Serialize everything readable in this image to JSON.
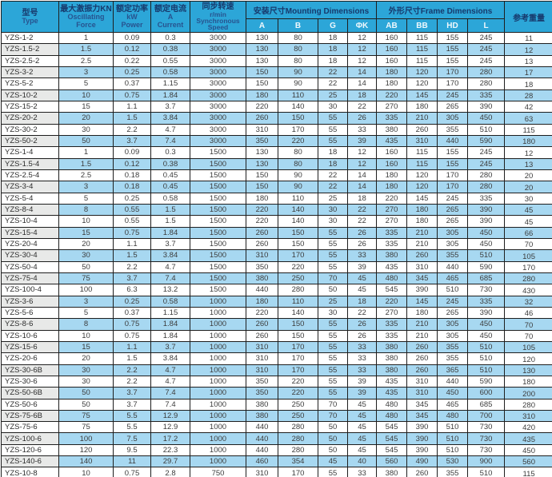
{
  "table": {
    "columns": {
      "type": {
        "lines": [
          "型号",
          "Type"
        ]
      },
      "force": {
        "lines": [
          "最大激振力KN",
          "Oscillating",
          "Force"
        ]
      },
      "power": {
        "lines": [
          "额定功率",
          "kW",
          "Power"
        ]
      },
      "current": {
        "lines": [
          "额定电流",
          "A",
          "Current"
        ]
      },
      "speed": {
        "lines": [
          "同步转速",
          "r/min",
          "Synchronous",
          "Speed"
        ]
      },
      "mounting": {
        "label": "安装尺寸Mounting Dimensions",
        "subs": [
          "A",
          "B",
          "G",
          "ΦK"
        ]
      },
      "frame": {
        "label": "外形尺寸Frame Dimensions",
        "subs": [
          "AB",
          "BB",
          "HD",
          "L"
        ]
      },
      "weight": {
        "label": "参考重量"
      }
    },
    "rows": [
      [
        "YZS-1-2",
        "1",
        "0.09",
        "0.3",
        "3000",
        "130",
        "80",
        "18",
        "12",
        "160",
        "115",
        "155",
        "245",
        "11"
      ],
      [
        "YZS-1.5-2",
        "1.5",
        "0.12",
        "0.38",
        "3000",
        "130",
        "80",
        "18",
        "12",
        "160",
        "115",
        "155",
        "245",
        "12"
      ],
      [
        "YZS-2.5-2",
        "2.5",
        "0.22",
        "0.55",
        "3000",
        "130",
        "80",
        "18",
        "12",
        "160",
        "115",
        "155",
        "245",
        "13"
      ],
      [
        "YZS-3-2",
        "3",
        "0.25",
        "0.58",
        "3000",
        "150",
        "90",
        "22",
        "14",
        "180",
        "120",
        "170",
        "280",
        "17"
      ],
      [
        "YZS-5-2",
        "5",
        "0.37",
        "1.15",
        "3000",
        "150",
        "90",
        "22",
        "14",
        "180",
        "120",
        "170",
        "280",
        "18"
      ],
      [
        "YZS-10-2",
        "10",
        "0.75",
        "1.84",
        "3000",
        "180",
        "110",
        "25",
        "18",
        "220",
        "145",
        "245",
        "335",
        "28"
      ],
      [
        "YZS-15-2",
        "15",
        "1.1",
        "3.7",
        "3000",
        "220",
        "140",
        "30",
        "22",
        "270",
        "180",
        "265",
        "390",
        "42"
      ],
      [
        "YZS-20-2",
        "20",
        "1.5",
        "3.84",
        "3000",
        "260",
        "150",
        "55",
        "26",
        "335",
        "210",
        "305",
        "450",
        "63"
      ],
      [
        "YZS-30-2",
        "30",
        "2.2",
        "4.7",
        "3000",
        "310",
        "170",
        "55",
        "33",
        "380",
        "260",
        "355",
        "510",
        "115"
      ],
      [
        "YZS-50-2",
        "50",
        "3.7",
        "7.4",
        "3000",
        "350",
        "220",
        "55",
        "39",
        "435",
        "310",
        "440",
        "590",
        "180"
      ],
      [
        "YZS-1-4",
        "1",
        "0.09",
        "0.3",
        "1500",
        "130",
        "80",
        "18",
        "12",
        "160",
        "115",
        "155",
        "245",
        "12"
      ],
      [
        "YZS-1.5-4",
        "1.5",
        "0.12",
        "0.38",
        "1500",
        "130",
        "80",
        "18",
        "12",
        "160",
        "115",
        "155",
        "245",
        "13"
      ],
      [
        "YZS-2.5-4",
        "2.5",
        "0.18",
        "0.45",
        "1500",
        "150",
        "90",
        "22",
        "14",
        "180",
        "120",
        "170",
        "280",
        "20"
      ],
      [
        "YZS-3-4",
        "3",
        "0.18",
        "0.45",
        "1500",
        "150",
        "90",
        "22",
        "14",
        "180",
        "120",
        "170",
        "280",
        "20"
      ],
      [
        "YZS-5-4",
        "5",
        "0.25",
        "0.58",
        "1500",
        "180",
        "110",
        "25",
        "18",
        "220",
        "145",
        "245",
        "335",
        "30"
      ],
      [
        "YZS-8-4",
        "8",
        "0.55",
        "1.5",
        "1500",
        "220",
        "140",
        "30",
        "22",
        "270",
        "180",
        "265",
        "390",
        "45"
      ],
      [
        "YZS-10-4",
        "10",
        "0.55",
        "1.5",
        "1500",
        "220",
        "140",
        "30",
        "22",
        "270",
        "180",
        "265",
        "390",
        "45"
      ],
      [
        "YZS-15-4",
        "15",
        "0.75",
        "1.84",
        "1500",
        "260",
        "150",
        "55",
        "26",
        "335",
        "210",
        "305",
        "450",
        "66"
      ],
      [
        "YZS-20-4",
        "20",
        "1.1",
        "3.7",
        "1500",
        "260",
        "150",
        "55",
        "26",
        "335",
        "210",
        "305",
        "450",
        "70"
      ],
      [
        "YZS-30-4",
        "30",
        "1.5",
        "3.84",
        "1500",
        "310",
        "170",
        "55",
        "33",
        "380",
        "260",
        "355",
        "510",
        "105"
      ],
      [
        "YZS-50-4",
        "50",
        "2.2",
        "4.7",
        "1500",
        "350",
        "220",
        "55",
        "39",
        "435",
        "310",
        "440",
        "590",
        "170"
      ],
      [
        "YZS-75-4",
        "75",
        "3.7",
        "7.4",
        "1500",
        "380",
        "250",
        "70",
        "45",
        "480",
        "345",
        "465",
        "685",
        "280"
      ],
      [
        "YZS-100-4",
        "100",
        "6.3",
        "13.2",
        "1500",
        "440",
        "280",
        "50",
        "45",
        "545",
        "390",
        "510",
        "730",
        "430"
      ],
      [
        "YZS-3-6",
        "3",
        "0.25",
        "0.58",
        "1000",
        "180",
        "110",
        "25",
        "18",
        "220",
        "145",
        "245",
        "335",
        "32"
      ],
      [
        "YZS-5-6",
        "5",
        "0.37",
        "1.15",
        "1000",
        "220",
        "140",
        "30",
        "22",
        "270",
        "180",
        "265",
        "390",
        "46"
      ],
      [
        "YZS-8-6",
        "8",
        "0.75",
        "1.84",
        "1000",
        "260",
        "150",
        "55",
        "26",
        "335",
        "210",
        "305",
        "450",
        "70"
      ],
      [
        "YZS-10-6",
        "10",
        "0.75",
        "1.84",
        "1000",
        "260",
        "150",
        "55",
        "26",
        "335",
        "210",
        "305",
        "450",
        "70"
      ],
      [
        "YZS-15-6",
        "15",
        "1.1",
        "3.7",
        "1000",
        "310",
        "170",
        "55",
        "33",
        "380",
        "260",
        "355",
        "510",
        "105"
      ],
      [
        "YZS-20-6",
        "20",
        "1.5",
        "3.84",
        "1000",
        "310",
        "170",
        "55",
        "33",
        "380",
        "260",
        "355",
        "510",
        "120"
      ],
      [
        "YZS-30-6B",
        "30",
        "2.2",
        "4.7",
        "1000",
        "310",
        "170",
        "55",
        "33",
        "380",
        "260",
        "365",
        "510",
        "130"
      ],
      [
        "YZS-30-6",
        "30",
        "2.2",
        "4.7",
        "1000",
        "350",
        "220",
        "55",
        "39",
        "435",
        "310",
        "440",
        "590",
        "180"
      ],
      [
        "YZS-50-6B",
        "50",
        "3.7",
        "7.4",
        "1000",
        "350",
        "220",
        "55",
        "39",
        "435",
        "310",
        "450",
        "600",
        "200"
      ],
      [
        "YZS-50-6",
        "50",
        "3.7",
        "7.4",
        "1000",
        "380",
        "250",
        "70",
        "45",
        "480",
        "345",
        "465",
        "685",
        "280"
      ],
      [
        "YZS-75-6B",
        "75",
        "5.5",
        "12.9",
        "1000",
        "380",
        "250",
        "70",
        "45",
        "480",
        "345",
        "480",
        "700",
        "310"
      ],
      [
        "YZS-75-6",
        "75",
        "5.5",
        "12.9",
        "1000",
        "440",
        "280",
        "50",
        "45",
        "545",
        "390",
        "510",
        "730",
        "420"
      ],
      [
        "YZS-100-6",
        "100",
        "7.5",
        "17.2",
        "1000",
        "440",
        "280",
        "50",
        "45",
        "545",
        "390",
        "510",
        "730",
        "435"
      ],
      [
        "YZS-120-6",
        "120",
        "9.5",
        "22.3",
        "1000",
        "440",
        "280",
        "50",
        "45",
        "545",
        "390",
        "510",
        "730",
        "450"
      ],
      [
        "YZS-140-6",
        "140",
        "11",
        "29.7",
        "1000",
        "460",
        "354",
        "45",
        "40",
        "560",
        "490",
        "530",
        "900",
        "560"
      ],
      [
        "YZS-10-8",
        "10",
        "0.75",
        "2.8",
        "750",
        "310",
        "170",
        "55",
        "33",
        "380",
        "260",
        "355",
        "510",
        "115"
      ]
    ],
    "colors": {
      "header_bg": "#2ca6d8",
      "header_text": "#173a6d",
      "subheader_text": "#eef8fd",
      "stripe_row_bg": "#a7d8f1",
      "stripe_type_cell_bg": "#e8e9e8",
      "grid_border": "#1e1e1e"
    }
  }
}
